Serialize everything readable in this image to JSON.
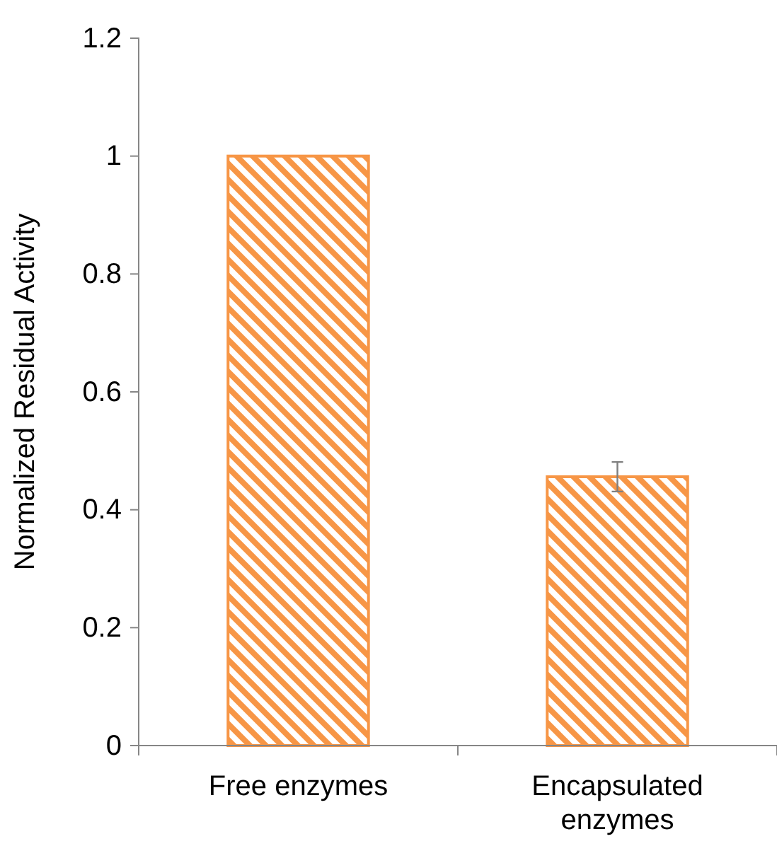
{
  "chart_data": {
    "type": "bar",
    "ylabel": "Normalized Residual Activity",
    "categories": [
      "Free enzymes",
      "Encapsulated enzymes"
    ],
    "series": [
      {
        "color": "#f79646",
        "values": [
          1,
          0.456
        ],
        "errors": [
          null,
          0.025
        ]
      }
    ],
    "ylim": [
      0,
      1.2
    ],
    "yticks": [
      0,
      0.2,
      0.4,
      0.6,
      0.8,
      1,
      1.2
    ],
    "grid": false
  }
}
